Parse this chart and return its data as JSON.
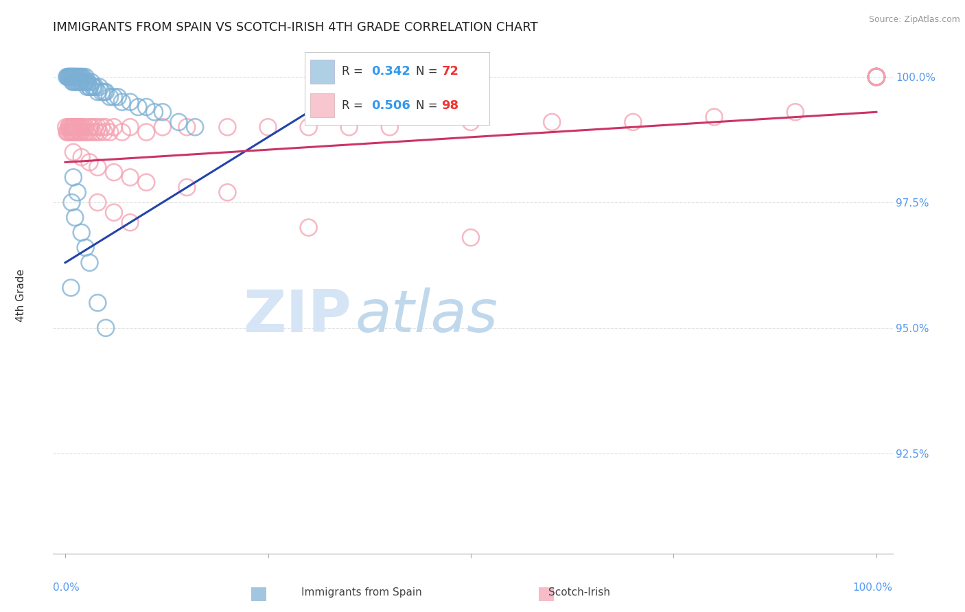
{
  "title": "IMMIGRANTS FROM SPAIN VS SCOTCH-IRISH 4TH GRADE CORRELATION CHART",
  "source": "Source: ZipAtlas.com",
  "ylabel": "4th Grade",
  "legend_blue_R": "0.342",
  "legend_blue_N": "72",
  "legend_pink_R": "0.506",
  "legend_pink_N": "98",
  "blue_color": "#7BAFD4",
  "pink_color": "#F4A0B0",
  "blue_line_color": "#2244AA",
  "pink_line_color": "#CC3366",
  "label_color": "#5599EE",
  "title_color": "#222222",
  "source_color": "#999999",
  "grid_color": "#DDDDDD",
  "yaxis_labels": [
    "92.5%",
    "95.0%",
    "97.5%",
    "100.0%"
  ],
  "yaxis_values": [
    0.925,
    0.95,
    0.975,
    1.0
  ],
  "ylim": [
    0.905,
    1.008
  ],
  "xlim": [
    -0.015,
    1.02
  ],
  "blue_x": [
    0.002,
    0.003,
    0.004,
    0.005,
    0.005,
    0.006,
    0.007,
    0.008,
    0.008,
    0.009,
    0.009,
    0.01,
    0.01,
    0.01,
    0.011,
    0.012,
    0.012,
    0.013,
    0.013,
    0.014,
    0.015,
    0.015,
    0.016,
    0.016,
    0.017,
    0.018,
    0.018,
    0.019,
    0.02,
    0.02,
    0.02,
    0.021,
    0.022,
    0.023,
    0.024,
    0.025,
    0.025,
    0.026,
    0.027,
    0.028,
    0.03,
    0.03,
    0.032,
    0.034,
    0.035,
    0.037,
    0.04,
    0.042,
    0.045,
    0.048,
    0.05,
    0.055,
    0.06,
    0.065,
    0.07,
    0.08,
    0.09,
    0.1,
    0.11,
    0.12,
    0.14,
    0.16,
    0.01,
    0.015,
    0.008,
    0.012,
    0.02,
    0.025,
    0.03,
    0.007,
    0.04,
    0.05
  ],
  "blue_y": [
    1.0,
    1.0,
    1.0,
    1.0,
    1.0,
    1.0,
    1.0,
    1.0,
    1.0,
    1.0,
    0.999,
    1.0,
    1.0,
    0.999,
    1.0,
    1.0,
    0.999,
    1.0,
    0.999,
    1.0,
    1.0,
    0.999,
    1.0,
    0.999,
    1.0,
    0.999,
    1.0,
    0.999,
    1.0,
    0.999,
    1.0,
    0.999,
    1.0,
    0.999,
    0.999,
    1.0,
    0.999,
    0.999,
    0.998,
    0.999,
    0.998,
    0.998,
    0.999,
    0.998,
    0.998,
    0.998,
    0.997,
    0.998,
    0.997,
    0.997,
    0.997,
    0.996,
    0.996,
    0.996,
    0.995,
    0.995,
    0.994,
    0.994,
    0.993,
    0.993,
    0.991,
    0.99,
    0.98,
    0.977,
    0.975,
    0.972,
    0.969,
    0.966,
    0.963,
    0.958,
    0.955,
    0.95
  ],
  "pink_x": [
    0.001,
    0.002,
    0.003,
    0.004,
    0.005,
    0.005,
    0.006,
    0.007,
    0.008,
    0.008,
    0.009,
    0.009,
    0.01,
    0.01,
    0.01,
    0.011,
    0.012,
    0.012,
    0.013,
    0.014,
    0.015,
    0.015,
    0.016,
    0.017,
    0.018,
    0.019,
    0.02,
    0.02,
    0.022,
    0.024,
    0.025,
    0.027,
    0.03,
    0.03,
    0.032,
    0.034,
    0.036,
    0.038,
    0.04,
    0.042,
    0.045,
    0.048,
    0.05,
    0.055,
    0.06,
    0.07,
    0.08,
    0.1,
    0.12,
    0.15,
    0.2,
    0.25,
    0.3,
    0.35,
    0.4,
    0.5,
    0.6,
    0.7,
    0.8,
    0.9,
    1.0,
    1.0,
    1.0,
    1.0,
    1.0,
    1.0,
    1.0,
    1.0,
    1.0,
    1.0,
    1.0,
    1.0,
    1.0,
    1.0,
    1.0,
    1.0,
    1.0,
    1.0,
    1.0,
    1.0,
    1.0,
    1.0,
    1.0,
    1.0,
    0.01,
    0.02,
    0.03,
    0.04,
    0.06,
    0.08,
    0.1,
    0.15,
    0.2,
    0.04,
    0.06,
    0.08,
    0.3,
    0.5
  ],
  "pink_y": [
    0.99,
    0.989,
    0.989,
    0.99,
    0.99,
    0.989,
    0.99,
    0.989,
    0.99,
    0.989,
    0.99,
    0.989,
    0.99,
    0.989,
    0.99,
    0.99,
    0.989,
    0.99,
    0.989,
    0.99,
    0.99,
    0.989,
    0.99,
    0.989,
    0.99,
    0.989,
    0.99,
    0.989,
    0.99,
    0.989,
    0.99,
    0.989,
    0.99,
    0.989,
    0.99,
    0.989,
    0.99,
    0.989,
    0.99,
    0.989,
    0.99,
    0.989,
    0.99,
    0.989,
    0.99,
    0.989,
    0.99,
    0.989,
    0.99,
    0.99,
    0.99,
    0.99,
    0.99,
    0.99,
    0.99,
    0.991,
    0.991,
    0.991,
    0.992,
    0.993,
    1.0,
    1.0,
    1.0,
    1.0,
    1.0,
    1.0,
    1.0,
    1.0,
    1.0,
    1.0,
    1.0,
    1.0,
    1.0,
    1.0,
    1.0,
    1.0,
    1.0,
    1.0,
    1.0,
    1.0,
    1.0,
    1.0,
    1.0,
    1.0,
    0.985,
    0.984,
    0.983,
    0.982,
    0.981,
    0.98,
    0.979,
    0.978,
    0.977,
    0.975,
    0.973,
    0.971,
    0.97,
    0.968
  ]
}
